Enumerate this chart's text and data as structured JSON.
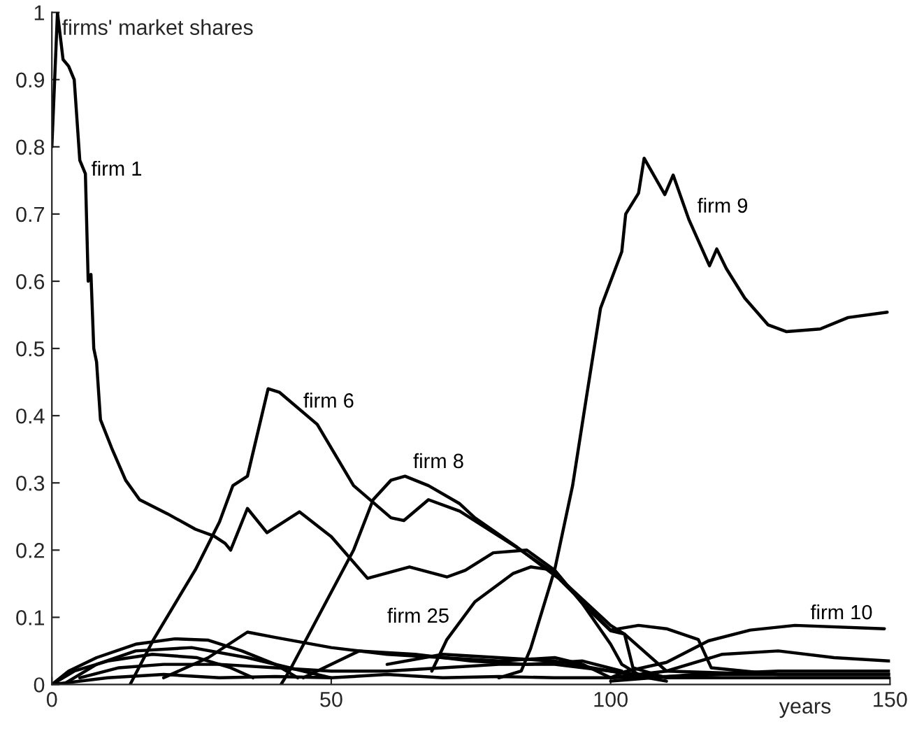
{
  "chart_data": {
    "type": "line",
    "ylabel": "firms' market shares",
    "xlabel": "years",
    "xlim": [
      0,
      150
    ],
    "xticks": [
      0,
      50,
      100,
      150
    ],
    "ylim": [
      0,
      1
    ],
    "yticks": [
      0,
      0.1,
      0.2,
      0.3,
      0.4,
      0.5,
      0.6,
      0.7,
      0.8,
      0.9,
      {
        "value": 1,
        "label": "1"
      }
    ],
    "grid": false,
    "series": [
      {
        "name": "firm 1",
        "color": "#000000",
        "x": [
          0,
          1,
          2,
          3,
          4,
          5,
          6,
          6.5,
          7,
          7.5,
          8,
          8.7,
          10.7,
          13.2,
          15.7,
          20.7,
          25.7,
          29,
          31,
          32,
          35,
          38.5,
          44.3,
          50,
          56.5,
          64,
          70.7,
          74,
          79,
          85,
          90,
          95,
          100,
          102.5,
          110,
          130,
          150
        ],
        "values": [
          0.8,
          1.0,
          0.93,
          0.92,
          0.9,
          0.78,
          0.76,
          0.6,
          0.61,
          0.5,
          0.48,
          0.394,
          0.352,
          0.304,
          0.275,
          0.254,
          0.231,
          0.221,
          0.21,
          0.2,
          0.262,
          0.226,
          0.257,
          0.22,
          0.158,
          0.175,
          0.16,
          0.17,
          0.196,
          0.2,
          0.17,
          0.12,
          0.08,
          0.075,
          0.02,
          0.015,
          0.015
        ]
      },
      {
        "name": "firm 6",
        "color": "#000000",
        "x": [
          14,
          18.2,
          25.7,
          30,
          32.4,
          35,
          38.7,
          40.7,
          47.5,
          54,
          60.7,
          63,
          67.4,
          73,
          83,
          90,
          100,
          102.5,
          104,
          110,
          150
        ],
        "values": [
          0,
          0.067,
          0.171,
          0.242,
          0.296,
          0.31,
          0.44,
          0.435,
          0.387,
          0.296,
          0.248,
          0.244,
          0.275,
          0.258,
          0.205,
          0.165,
          0.088,
          0.075,
          0.025,
          0.01,
          0.01
        ]
      },
      {
        "name": "firm 8",
        "color": "#000000",
        "x": [
          41,
          42.5,
          54,
          57.5,
          60.7,
          63.2,
          67.4,
          73,
          75.7,
          83,
          90.7,
          100,
          105,
          110,
          115.7,
          118,
          130,
          150
        ],
        "values": [
          0,
          0.02,
          0.2,
          0.275,
          0.304,
          0.31,
          0.296,
          0.269,
          0.248,
          0.206,
          0.158,
          0.081,
          0.088,
          0.083,
          0.067,
          0.025,
          0.015,
          0.015
        ]
      },
      {
        "name": "firm 9",
        "color": "#000000",
        "x": [
          80,
          84,
          85.7,
          90,
          93.2,
          95.7,
          98.2,
          102,
          102.7,
          105,
          106,
          109.7,
          111.2,
          114,
          117.7,
          119,
          120.7,
          124,
          128.2,
          131.5,
          137.5,
          142.5,
          149.5
        ],
        "values": [
          0.01,
          0.02,
          0.054,
          0.171,
          0.296,
          0.429,
          0.56,
          0.644,
          0.7,
          0.731,
          0.783,
          0.729,
          0.758,
          0.692,
          0.623,
          0.648,
          0.619,
          0.575,
          0.535,
          0.525,
          0.529,
          0.546,
          0.554
        ]
      },
      {
        "name": "firm 25",
        "color": "#000000",
        "x": [
          68,
          70.7,
          75.7,
          82.5,
          85.7,
          90,
          95,
          100,
          102,
          106
        ],
        "values": [
          0.02,
          0.067,
          0.123,
          0.165,
          0.175,
          0.17,
          0.12,
          0.06,
          0.03,
          0.01
        ]
      },
      {
        "name": "firm 10",
        "color": "#000000",
        "x": [
          100,
          102.5,
          110,
          117.5,
          125,
          133,
          149
        ],
        "values": [
          0.01,
          0.019,
          0.033,
          0.065,
          0.081,
          0.088,
          0.083
        ]
      },
      {
        "color": "#000000",
        "x": [
          0,
          3,
          8,
          15,
          22,
          28,
          34,
          40,
          44
        ],
        "values": [
          0,
          0.02,
          0.04,
          0.06,
          0.068,
          0.066,
          0.05,
          0.03,
          0.01
        ]
      },
      {
        "color": "#000000",
        "x": [
          0,
          4,
          10,
          18,
          26,
          32,
          36
        ],
        "values": [
          0,
          0.02,
          0.035,
          0.045,
          0.04,
          0.025,
          0.01
        ]
      },
      {
        "color": "#000000",
        "x": [
          2,
          8,
          15,
          25,
          35,
          45,
          50
        ],
        "values": [
          0,
          0.03,
          0.05,
          0.055,
          0.04,
          0.02,
          0.01
        ]
      },
      {
        "color": "#000000",
        "x": [
          20,
          28,
          35,
          40,
          50,
          60,
          70,
          80,
          90,
          95,
          100
        ],
        "values": [
          0.01,
          0.04,
          0.078,
          0.07,
          0.055,
          0.045,
          0.04,
          0.035,
          0.04,
          0.03,
          0.01
        ]
      },
      {
        "color": "#000000",
        "x": [
          45,
          55,
          65,
          75,
          85,
          95,
          102
        ],
        "values": [
          0.01,
          0.05,
          0.045,
          0.035,
          0.03,
          0.035,
          0.02
        ]
      },
      {
        "color": "#000000",
        "x": [
          5,
          12,
          20,
          30,
          40,
          50,
          60,
          70,
          80,
          90,
          100,
          110
        ],
        "values": [
          0.01,
          0.025,
          0.03,
          0.03,
          0.025,
          0.02,
          0.02,
          0.025,
          0.03,
          0.03,
          0.02,
          0.01
        ]
      },
      {
        "color": "#000000",
        "x": [
          100,
          110,
          120,
          130,
          140,
          150
        ],
        "values": [
          0.01,
          0.02,
          0.045,
          0.05,
          0.04,
          0.035
        ]
      },
      {
        "color": "#000000",
        "x": [
          100,
          115,
          130,
          150
        ],
        "values": [
          0.005,
          0.015,
          0.02,
          0.02
        ]
      },
      {
        "color": "#000000",
        "x": [
          60,
          70,
          80,
          90,
          100,
          110
        ],
        "values": [
          0.03,
          0.045,
          0.04,
          0.035,
          0.02,
          0.005
        ]
      },
      {
        "color": "#000000",
        "x": [
          0,
          10,
          20,
          30,
          40,
          50,
          60,
          70,
          80,
          90,
          100,
          110,
          120,
          130,
          140,
          150
        ],
        "values": [
          0,
          0.01,
          0.015,
          0.01,
          0.012,
          0.01,
          0.015,
          0.01,
          0.012,
          0.01,
          0.01,
          0.012,
          0.015,
          0.015,
          0.015,
          0.015
        ]
      }
    ]
  }
}
